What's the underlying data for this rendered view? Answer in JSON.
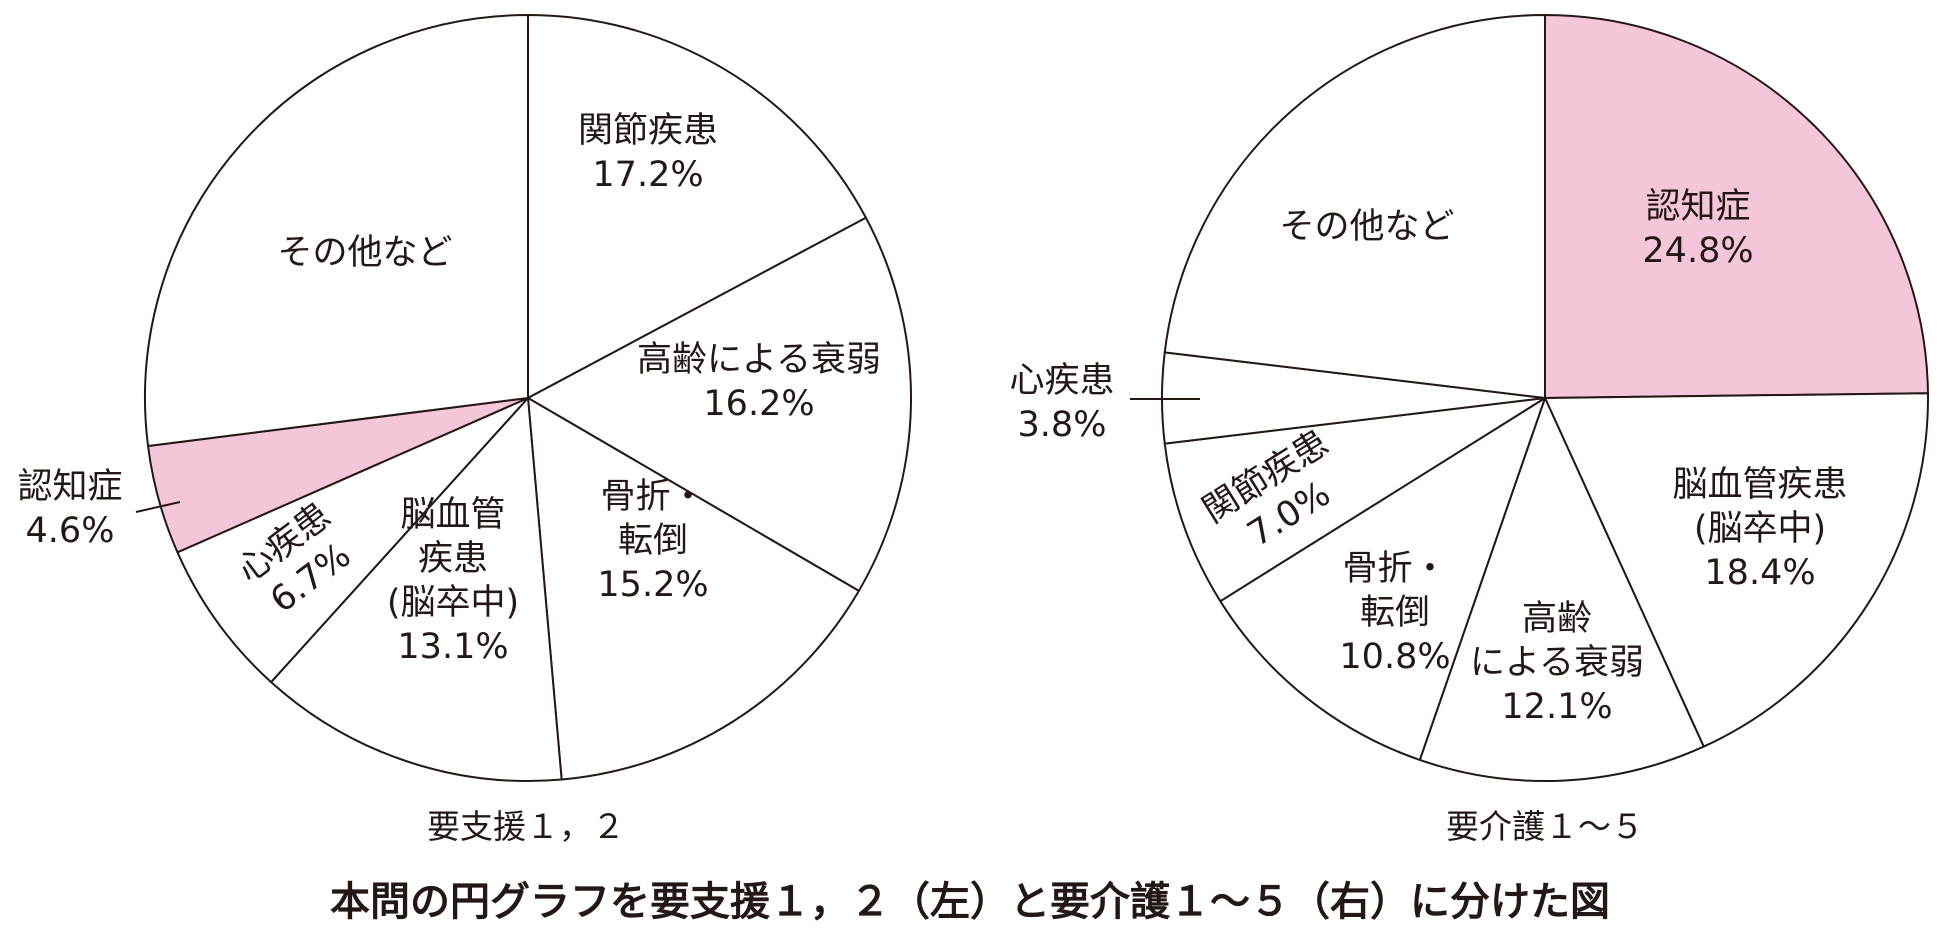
{
  "figure_title": "本問の円グラフを要支援１，２（左）と要介護１～５（右）に分けた図",
  "colors": {
    "stroke": "#231815",
    "highlight": "#f5c6d9",
    "plain": "#ffffff"
  },
  "chart_data": [
    {
      "type": "pie",
      "caption": "要支援１，２",
      "start_angle_deg": 0,
      "direction": "clockwise",
      "slices": [
        {
          "label_lines": [
            "関節疾患"
          ],
          "value_text": "17.2%",
          "value": 17.2,
          "highlight": false
        },
        {
          "label_lines": [
            "高齢による衰弱"
          ],
          "value_text": "16.2%",
          "value": 16.2,
          "highlight": false
        },
        {
          "label_lines": [
            "骨折・",
            "転倒"
          ],
          "value_text": "15.2%",
          "value": 15.2,
          "highlight": false
        },
        {
          "label_lines": [
            "脳血管",
            "疾患",
            "(脳卒中)"
          ],
          "value_text": "13.1%",
          "value": 13.1,
          "highlight": false
        },
        {
          "label_lines": [
            "心疾患"
          ],
          "value_text": "6.7%",
          "value": 6.7,
          "highlight": false,
          "rotated": true
        },
        {
          "label_lines": [
            "認知症"
          ],
          "value_text": "4.6%",
          "value": 4.6,
          "highlight": true,
          "outside": true
        },
        {
          "label_lines": [
            "その他など"
          ],
          "value_text": "",
          "value": 27.0,
          "highlight": false
        }
      ]
    },
    {
      "type": "pie",
      "caption": "要介護１～５",
      "start_angle_deg": 0,
      "direction": "clockwise",
      "slices": [
        {
          "label_lines": [
            "認知症"
          ],
          "value_text": "24.8%",
          "value": 24.8,
          "highlight": true
        },
        {
          "label_lines": [
            "脳血管疾患",
            "(脳卒中)"
          ],
          "value_text": "18.4%",
          "value": 18.4,
          "highlight": false
        },
        {
          "label_lines": [
            "高齢",
            "による衰弱"
          ],
          "value_text": "12.1%",
          "value": 12.1,
          "highlight": false
        },
        {
          "label_lines": [
            "骨折・",
            "転倒"
          ],
          "value_text": "10.8%",
          "value": 10.8,
          "highlight": false
        },
        {
          "label_lines": [
            "関節疾患"
          ],
          "value_text": "7.0%",
          "value": 7.0,
          "highlight": false,
          "rotated": true
        },
        {
          "label_lines": [
            "心疾患"
          ],
          "value_text": "3.8%",
          "value": 3.8,
          "highlight": false,
          "outside": true
        },
        {
          "label_lines": [
            "その他など"
          ],
          "value_text": "",
          "value": 23.1,
          "highlight": false
        }
      ]
    }
  ]
}
